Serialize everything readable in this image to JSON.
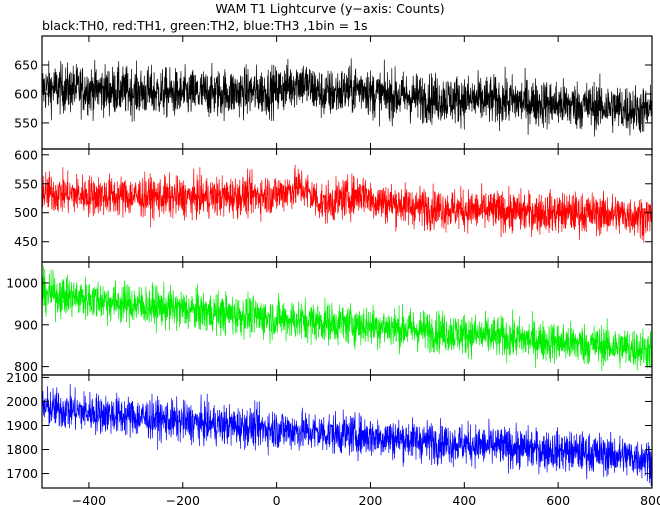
{
  "title": "WAM T1 Lightcurve (y−axis: Counts)",
  "subtitle": "black:TH0, red:TH1, green:TH2, blue:TH3 ,1bin = 1s",
  "chart_data": [
    {
      "type": "line",
      "series_name": "TH0",
      "color": "#000000",
      "x_range": [
        -500,
        800
      ],
      "ylim": [
        505,
        700
      ],
      "yticks": [
        550,
        600,
        650
      ],
      "points": [
        [
          -500,
          610
        ],
        [
          -400,
          608
        ],
        [
          -300,
          604
        ],
        [
          -200,
          600
        ],
        [
          -100,
          602
        ],
        [
          0,
          606
        ],
        [
          50,
          622
        ],
        [
          100,
          598
        ],
        [
          190,
          612
        ],
        [
          200,
          600
        ],
        [
          300,
          594
        ],
        [
          400,
          590
        ],
        [
          500,
          588
        ],
        [
          600,
          582
        ],
        [
          700,
          578
        ],
        [
          800,
          570
        ]
      ],
      "noise": 30
    },
    {
      "type": "line",
      "series_name": "TH1",
      "color": "#ff0000",
      "x_range": [
        -500,
        800
      ],
      "ylim": [
        415,
        610
      ],
      "yticks": [
        450,
        500,
        550,
        600
      ],
      "points": [
        [
          -500,
          535
        ],
        [
          -400,
          530
        ],
        [
          -300,
          528
        ],
        [
          -200,
          526
        ],
        [
          -100,
          528
        ],
        [
          0,
          532
        ],
        [
          50,
          545
        ],
        [
          100,
          515
        ],
        [
          190,
          535
        ],
        [
          200,
          522
        ],
        [
          300,
          510
        ],
        [
          400,
          505
        ],
        [
          500,
          502
        ],
        [
          600,
          500
        ],
        [
          700,
          498
        ],
        [
          800,
          494
        ]
      ],
      "noise": 25
    },
    {
      "type": "line",
      "series_name": "TH2",
      "color": "#00ee00",
      "x_range": [
        -500,
        800
      ],
      "ylim": [
        780,
        1050
      ],
      "yticks": [
        800,
        900,
        1000
      ],
      "points": [
        [
          -500,
          975
        ],
        [
          -400,
          962
        ],
        [
          -300,
          948
        ],
        [
          -200,
          936
        ],
        [
          -100,
          925
        ],
        [
          0,
          915
        ],
        [
          100,
          906
        ],
        [
          200,
          898
        ],
        [
          300,
          888
        ],
        [
          400,
          878
        ],
        [
          500,
          868
        ],
        [
          600,
          858
        ],
        [
          700,
          850
        ],
        [
          800,
          840
        ]
      ],
      "noise": 35
    },
    {
      "type": "line",
      "series_name": "TH3",
      "color": "#0000ff",
      "x_range": [
        -500,
        800
      ],
      "ylim": [
        1640,
        2110
      ],
      "yticks": [
        1700,
        1800,
        1900,
        2000,
        2100
      ],
      "points": [
        [
          -500,
          1975
        ],
        [
          -400,
          1955
        ],
        [
          -300,
          1935
        ],
        [
          -200,
          1915
        ],
        [
          -100,
          1900
        ],
        [
          0,
          1885
        ],
        [
          100,
          1870
        ],
        [
          200,
          1855
        ],
        [
          300,
          1838
        ],
        [
          400,
          1822
        ],
        [
          500,
          1808
        ],
        [
          600,
          1795
        ],
        [
          700,
          1780
        ],
        [
          800,
          1760
        ]
      ],
      "noise": 60
    }
  ],
  "x_ticks": [
    -400,
    -200,
    0,
    200,
    400,
    600,
    800
  ]
}
